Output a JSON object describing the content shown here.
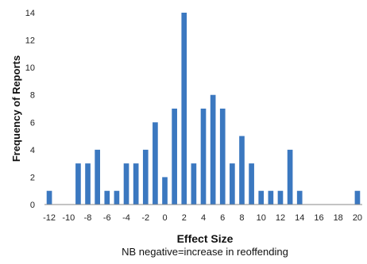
{
  "chart_data": {
    "type": "bar",
    "xlabel": "Effect Size",
    "ylabel": "Frequency of Reports",
    "note": "NB negative=increase in reoffending",
    "x": [
      -12,
      -11,
      -10,
      -9,
      -8,
      -7,
      -6,
      -5,
      -4,
      -3,
      -2,
      -1,
      0,
      1,
      2,
      3,
      4,
      5,
      6,
      7,
      8,
      9,
      10,
      11,
      12,
      13,
      14,
      15,
      16,
      17,
      18,
      19,
      20
    ],
    "values": [
      1,
      0,
      0,
      3,
      3,
      4,
      1,
      1,
      3,
      3,
      4,
      6,
      2,
      7,
      14,
      3,
      7,
      8,
      7,
      3,
      5,
      3,
      1,
      1,
      1,
      4,
      1,
      0,
      0,
      0,
      0,
      0,
      1
    ],
    "xticks": [
      -12,
      -10,
      -8,
      -6,
      -4,
      -2,
      0,
      2,
      4,
      6,
      8,
      10,
      12,
      14,
      16,
      18,
      20
    ],
    "yticks": [
      0,
      2,
      4,
      6,
      8,
      10,
      12,
      14
    ],
    "xlim": [
      -12,
      20
    ],
    "ylim": [
      0,
      14
    ],
    "grid": false,
    "bar_color": "#3b78c0",
    "axis_color": "#8a8a8a"
  }
}
